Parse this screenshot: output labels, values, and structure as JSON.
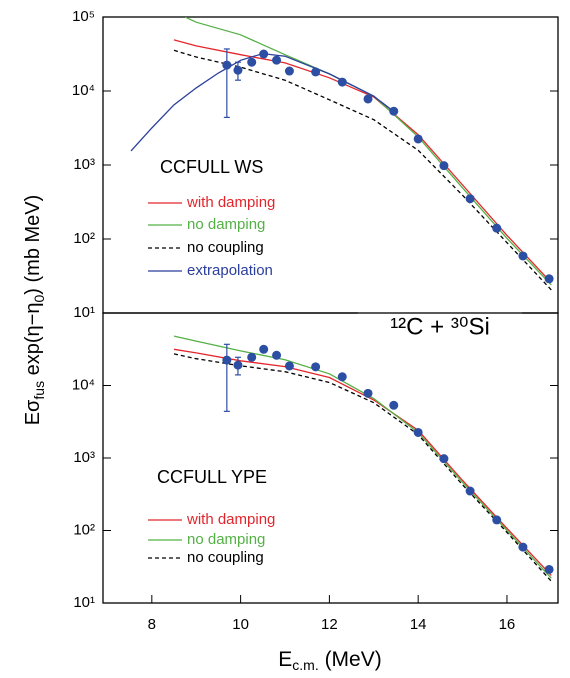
{
  "chart_data": [
    {
      "type": "line",
      "ylog": true,
      "xlim": [
        6.9,
        17.15
      ],
      "ylim": [
        10,
        100000
      ],
      "yticks": [
        {
          "value": 10,
          "label": "10¹"
        },
        {
          "value": 100,
          "label": "10²"
        },
        {
          "value": 1000,
          "label": "10³"
        },
        {
          "value": 10000,
          "label": "10⁴"
        },
        {
          "value": 100000,
          "label": "10⁵"
        }
      ],
      "ylabel": [
        "Eσ",
        "fus",
        " exp(η−η",
        "0",
        ")  (mb MeV)"
      ],
      "annotations": [
        "CCFULL WS",
        "¹²C + ³⁰Si"
      ],
      "series": [
        {
          "name": "with damping",
          "color": "#e3262c",
          "dash": false,
          "x": [
            8.5,
            9,
            10,
            11,
            12,
            13,
            14,
            15,
            16,
            17
          ],
          "values": [
            49000,
            40700,
            30900,
            24000,
            15100,
            8300,
            2570,
            537,
            112,
            25.7
          ]
        },
        {
          "name": "no damping",
          "color": "#55b046",
          "dash": false,
          "x": [
            8.75,
            9,
            10,
            11,
            12,
            13,
            14,
            15,
            16,
            17
          ],
          "values": [
            100000,
            85000,
            57500,
            30900,
            17000,
            8500,
            2400,
            490,
            102,
            24
          ]
        },
        {
          "name": "no coupling",
          "color": "#000000",
          "dash": true,
          "x": [
            8.5,
            9,
            10,
            11,
            12,
            13,
            14,
            15,
            16,
            17
          ],
          "values": [
            35500,
            28800,
            21000,
            14000,
            7600,
            4100,
            1580,
            390,
            89,
            20.5
          ]
        },
        {
          "name": "extrapolation",
          "color": "#2b3f9c",
          "dash": false,
          "x": [
            7.53,
            8,
            8.5,
            9,
            9.5,
            10,
            10.5,
            11,
            12,
            13,
            13.5
          ],
          "values": [
            1550,
            3160,
            6500,
            11000,
            17500,
            26000,
            32000,
            29500,
            17000,
            8500,
            5000
          ]
        }
      ],
      "points": {
        "color": "#2c4ea3",
        "x": [
          9.69,
          9.94,
          10.25,
          10.52,
          10.81,
          11.1,
          11.69,
          12.29,
          12.87,
          13.45,
          14.0,
          14.58,
          15.17,
          15.77,
          16.36,
          16.95
        ],
        "values": [
          22400,
          19100,
          24500,
          31600,
          26100,
          18600,
          18100,
          13200,
          7800,
          5330,
          2250,
          980,
          350,
          140,
          59,
          29
        ],
        "error_high": [
          37000,
          24500,
          null,
          null,
          null,
          null,
          null,
          null,
          null,
          null,
          null,
          null,
          null,
          null,
          null,
          null
        ],
        "error_low": [
          4400,
          14000,
          null,
          null,
          null,
          null,
          null,
          null,
          null,
          null,
          null,
          null,
          null,
          null,
          null,
          null
        ]
      }
    },
    {
      "type": "line",
      "ylog": true,
      "xlim": [
        6.9,
        17.15
      ],
      "ylim": [
        10,
        100000
      ],
      "xticks": [
        8,
        10,
        12,
        14,
        16
      ],
      "yticks": [
        {
          "value": 10,
          "label": "10¹"
        },
        {
          "value": 100,
          "label": "10²"
        },
        {
          "value": 1000,
          "label": "10³"
        },
        {
          "value": 10000,
          "label": "10⁴"
        }
      ],
      "xlabel": [
        "E",
        "c.m.",
        " (MeV)"
      ],
      "annotations": [
        "CCFULL YPE"
      ],
      "series": [
        {
          "name": "with damping",
          "color": "#e3262c",
          "dash": false,
          "x": [
            8.5,
            9,
            10,
            11,
            12,
            13,
            14,
            15,
            16,
            17
          ],
          "values": [
            31600,
            28200,
            21900,
            18200,
            12900,
            6300,
            2400,
            490,
            107,
            24
          ]
        },
        {
          "name": "no damping",
          "color": "#55b046",
          "dash": false,
          "x": [
            8.5,
            9,
            10,
            11,
            12,
            13,
            14,
            15,
            16,
            17
          ],
          "values": [
            48000,
            41000,
            30000,
            22600,
            14500,
            6600,
            2240,
            460,
            100,
            22
          ]
        },
        {
          "name": "no coupling",
          "color": "#000000",
          "dash": true,
          "x": [
            8.5,
            9,
            10,
            11,
            12,
            13,
            14,
            15,
            16,
            17
          ],
          "values": [
            27300,
            23400,
            18700,
            15500,
            11000,
            5800,
            2100,
            425,
            94,
            20
          ]
        }
      ],
      "points": {
        "color": "#2c4ea3",
        "x": [
          9.69,
          9.94,
          10.25,
          10.52,
          10.81,
          11.1,
          11.69,
          12.29,
          12.87,
          13.45,
          14.0,
          14.58,
          15.17,
          15.77,
          16.36,
          16.95
        ],
        "values": [
          22400,
          19100,
          24500,
          31600,
          26100,
          18600,
          18100,
          13200,
          7800,
          5330,
          2250,
          980,
          350,
          140,
          59,
          29
        ],
        "error_high": [
          37000,
          24500,
          null,
          null,
          null,
          null,
          null,
          null,
          null,
          null,
          null,
          null,
          null,
          null,
          null,
          null
        ],
        "error_low": [
          4400,
          14000,
          null,
          null,
          null,
          null,
          null,
          null,
          null,
          null,
          null,
          null,
          null,
          null,
          null,
          null
        ]
      }
    }
  ]
}
